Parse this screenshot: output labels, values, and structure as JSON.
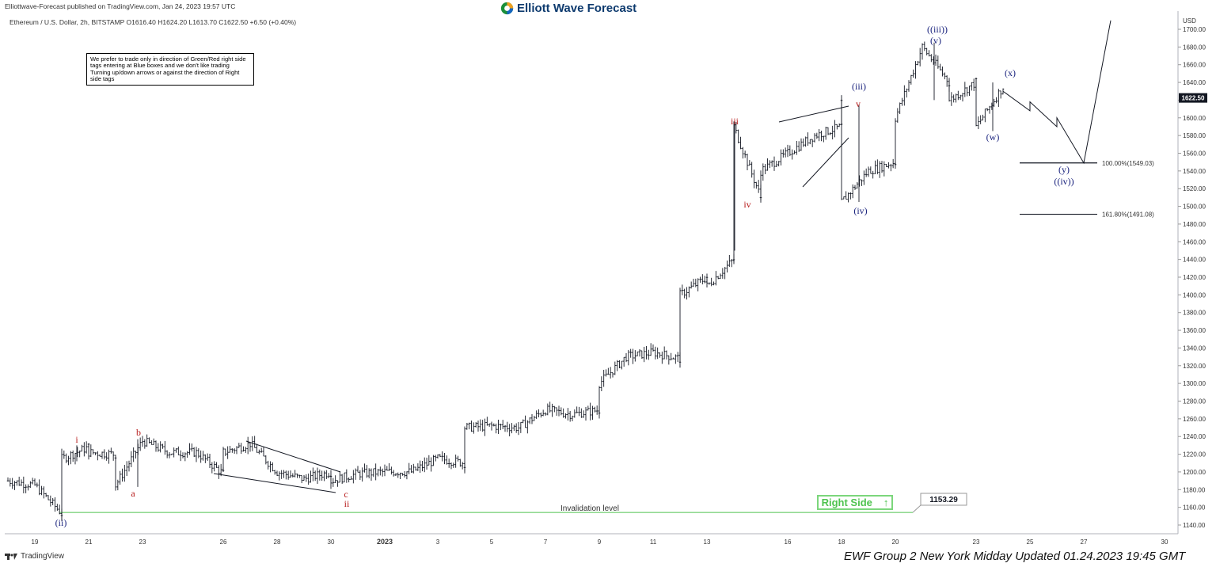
{
  "header": {
    "published": "Elliottwave-Forecast published on TradingView.com, Jan 24, 2023 19:57 UTC",
    "brand": "Elliott Wave Forecast",
    "symbol_line": "Ethereum / U.S. Dollar, 2h, BITSTAMP  O1616.40  H1624.20  L1613.70  C1622.50  +6.50 (+0.40%)"
  },
  "note": "We prefer to trade only in direction of Green/Red right side tags entering at Blue boxes and we don't like trading Turning up/down arrows or against the direction of Right side tags",
  "footer": {
    "tradingview": "TradingView",
    "update": "EWF Group 2 New York Midday Updated 01.24.2023 19:45 GMT"
  },
  "right_side_tag": {
    "label": "Right Side",
    "arrow": "↑",
    "color": "#4fc34f"
  },
  "chart_data": {
    "type": "candlestick",
    "title": "",
    "currency": "USD",
    "ylim": [
      1130,
      1720
    ],
    "current_price": "1622.50",
    "x_ticks": [
      "19",
      "21",
      "23",
      "26",
      "28",
      "30",
      "2023",
      "3",
      "5",
      "7",
      "9",
      "11",
      "13",
      "16",
      "18",
      "20",
      "23",
      "25",
      "27",
      "30"
    ],
    "y_ticks": [
      "1140.00",
      "1160.00",
      "1180.00",
      "1200.00",
      "1220.00",
      "1240.00",
      "1260.00",
      "1280.00",
      "1300.00",
      "1320.00",
      "1340.00",
      "1360.00",
      "1380.00",
      "1400.00",
      "1420.00",
      "1440.00",
      "1460.00",
      "1480.00",
      "1500.00",
      "1520.00",
      "1540.00",
      "1560.00",
      "1580.00",
      "1600.00",
      "1620.00",
      "1640.00",
      "1660.00",
      "1680.00",
      "1700.00"
    ],
    "price_path": [
      [
        "Dec 18",
        1190
      ],
      [
        "Dec 19",
        1185
      ],
      [
        "Dec 20",
        1153
      ],
      [
        "Dec 20",
        1215
      ],
      [
        "Dec 21",
        1228
      ],
      [
        "Dec 21",
        1222
      ],
      [
        "Dec 22",
        1220
      ],
      [
        "Dec 22",
        1185
      ],
      [
        "Dec 23",
        1235
      ],
      [
        "Dec 24",
        1222
      ],
      [
        "Dec 25",
        1222
      ],
      [
        "Dec 26",
        1198
      ],
      [
        "Dec 26",
        1222
      ],
      [
        "Dec 27",
        1232
      ],
      [
        "Dec 28",
        1200
      ],
      [
        "Dec 29",
        1192
      ],
      [
        "Dec 30",
        1200
      ],
      [
        "Dec 30",
        1190
      ],
      [
        "Dec 31",
        1198
      ],
      [
        "Jan 1",
        1200
      ],
      [
        "Jan 2",
        1200
      ],
      [
        "Jan 3",
        1215
      ],
      [
        "Jan 4",
        1210
      ],
      [
        "Jan 4",
        1250
      ],
      [
        "Jan 5",
        1252
      ],
      [
        "Jan 6",
        1250
      ],
      [
        "Jan 7",
        1270
      ],
      [
        "Jan 8",
        1265
      ],
      [
        "Jan 9",
        1270
      ],
      [
        "Jan 9",
        1300
      ],
      [
        "Jan 10",
        1330
      ],
      [
        "Jan 11",
        1335
      ],
      [
        "Jan 12",
        1328
      ],
      [
        "Jan 12",
        1400
      ],
      [
        "Jan 13",
        1420
      ],
      [
        "Jan 13",
        1410
      ],
      [
        "Jan 14",
        1440
      ],
      [
        "Jan 14",
        1590
      ],
      [
        "Jan 15",
        1510
      ],
      [
        "Jan 15",
        1540
      ],
      [
        "Jan 16",
        1560
      ],
      [
        "Jan 17",
        1580
      ],
      [
        "Jan 18",
        1590
      ],
      [
        "Jan 18",
        1615
      ],
      [
        "Jan 18",
        1505
      ],
      [
        "Jan 19",
        1540
      ],
      [
        "Jan 20",
        1550
      ],
      [
        "Jan 20",
        1600
      ],
      [
        "Jan 21",
        1680
      ],
      [
        "Jan 22",
        1640
      ],
      [
        "Jan 22",
        1620
      ],
      [
        "Jan 23",
        1640
      ],
      [
        "Jan 23",
        1590
      ],
      [
        "Jan 24",
        1635
      ],
      [
        "Jan 24",
        1622.5
      ]
    ],
    "projection": [
      [
        "Jan 24",
        1630
      ],
      [
        "Jan 25",
        1608
      ],
      [
        "Jan 25",
        1618
      ],
      [
        "Jan 26",
        1590
      ],
      [
        "Jan 26",
        1600
      ],
      [
        "Jan 27",
        1549
      ],
      [
        "Jan 28",
        1710
      ]
    ],
    "levels": [
      {
        "label": "100.00%(1549.03)",
        "value": 1549.03
      },
      {
        "label": "161.80%(1491.08)",
        "value": 1491.08
      }
    ],
    "invalidation": {
      "label": "Invalidation level",
      "value": "1153.29",
      "color": "#4fc34f"
    },
    "wave_labels": [
      {
        "text": "(ii)",
        "color": "#1a237e"
      },
      {
        "text": "i",
        "color": "#b71c1c"
      },
      {
        "text": "a",
        "color": "#b71c1c"
      },
      {
        "text": "b",
        "color": "#b71c1c"
      },
      {
        "text": "c",
        "color": "#b71c1c"
      },
      {
        "text": "ii",
        "color": "#b71c1c"
      },
      {
        "text": "iii",
        "color": "#b71c1c"
      },
      {
        "text": "iv",
        "color": "#b71c1c"
      },
      {
        "text": "v",
        "color": "#b71c1c"
      },
      {
        "text": "(iii)",
        "color": "#1a237e"
      },
      {
        "text": "(iv)",
        "color": "#1a237e"
      },
      {
        "text": "((iii))",
        "color": "#1a237e"
      },
      {
        "text": "(v)",
        "color": "#1a237e"
      },
      {
        "text": "(w)",
        "color": "#1a237e"
      },
      {
        "text": "(x)",
        "color": "#1a237e"
      },
      {
        "text": "(y)",
        "color": "#1a237e"
      },
      {
        "text": "((iv))",
        "color": "#1a237e"
      }
    ]
  }
}
